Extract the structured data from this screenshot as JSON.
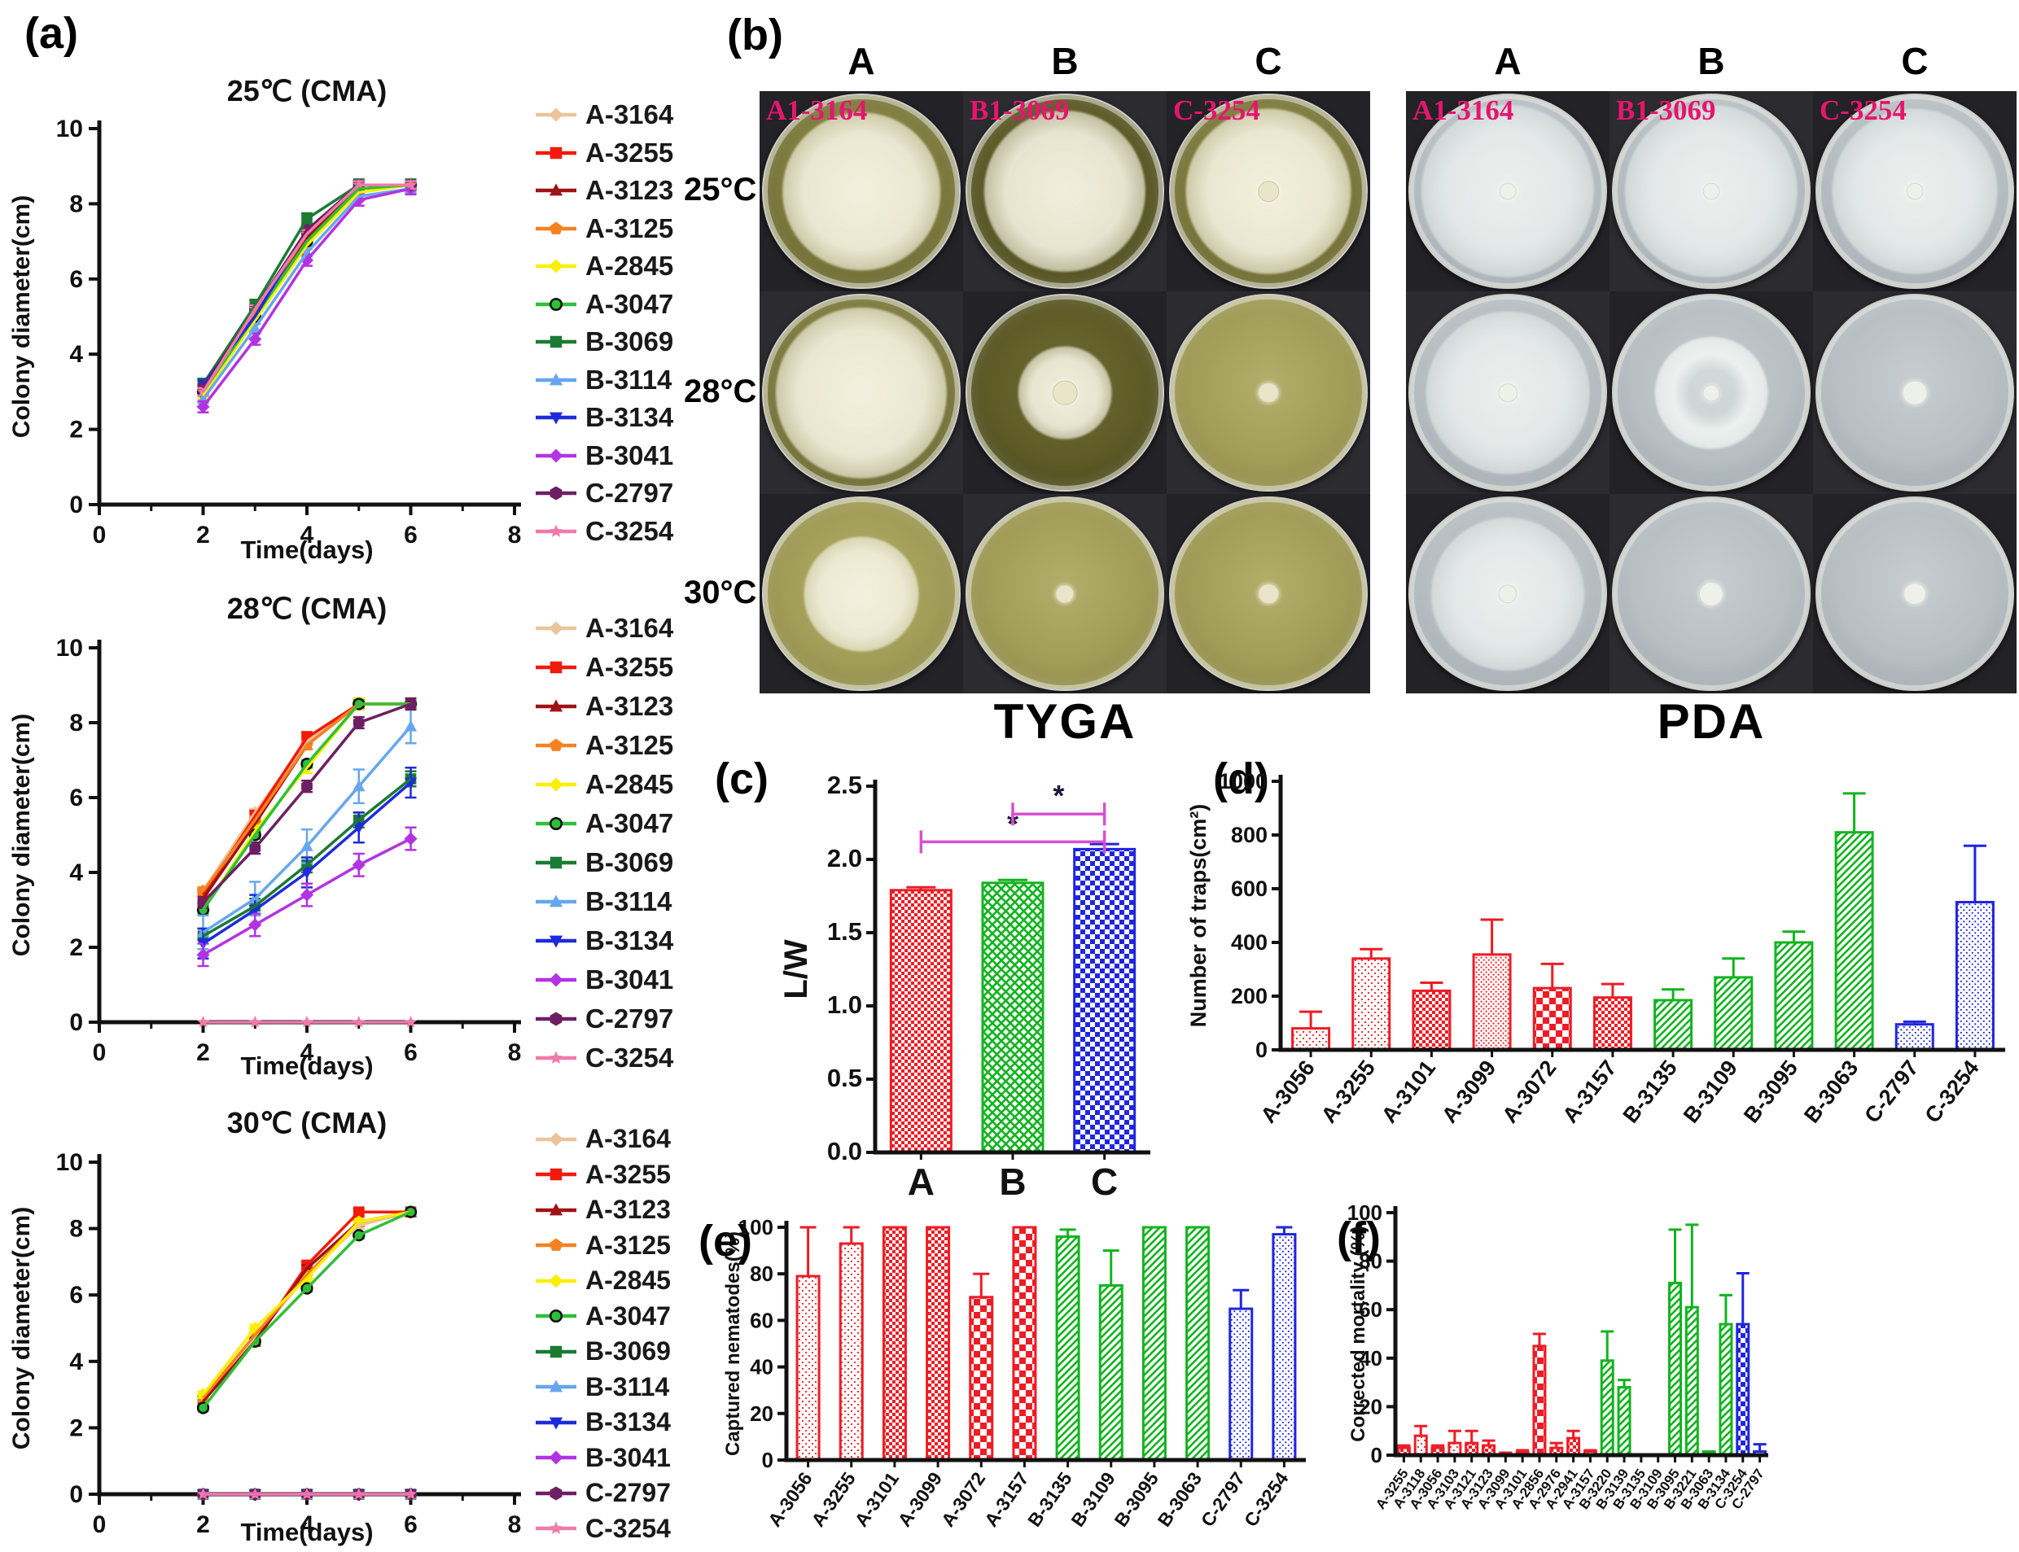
{
  "panels": {
    "a": {
      "label": "(a)",
      "xlabel": "Time(days)",
      "ylabel": "Colony diameter(cm)"
    },
    "b": {
      "label": "(b)",
      "row_labels": [
        "25°C",
        "28°C",
        "30°C"
      ],
      "strain_label_color": "#E6156E",
      "groups": [
        {
          "caption": "TYGA",
          "columns": [
            "A",
            "B",
            "C"
          ],
          "strains": [
            "A1-3164",
            "B1-3069",
            "C-3254"
          ],
          "rows": [
            [
              {
                "tone": "olive",
                "colony": 0.82,
                "plug": 0
              },
              {
                "tone": "oliveDark",
                "colony": 0.84,
                "plug": 0
              },
              {
                "tone": "olive",
                "colony": 0.86,
                "plug": 0.1
              }
            ],
            [
              {
                "tone": "olive",
                "colony": 0.88,
                "plug": 0
              },
              {
                "tone": "oliveDark",
                "colony": 0.48,
                "plug": 0.12
              },
              {
                "tone": "oliveLight",
                "colony": 0,
                "plug": 0.1
              }
            ],
            [
              {
                "tone": "oliveLight",
                "colony": 0.6,
                "plug": 0
              },
              {
                "tone": "oliveLight",
                "colony": 0,
                "plug": 0.09
              },
              {
                "tone": "oliveLight",
                "colony": 0,
                "plug": 0.1
              }
            ]
          ]
        },
        {
          "caption": "PDA",
          "columns": [
            "A",
            "B",
            "C"
          ],
          "strains": [
            "A1-3164",
            "B1-3069",
            "C-3254"
          ],
          "rows": [
            [
              {
                "tone": "gray",
                "colony": 0.9,
                "plug": 0.08
              },
              {
                "tone": "gray",
                "colony": 0.9,
                "plug": 0.08
              },
              {
                "tone": "gray",
                "colony": 0.86,
                "plug": 0.08
              }
            ],
            [
              {
                "tone": "gray",
                "colony": 0.84,
                "plug": 0.09
              },
              {
                "tone": "gray",
                "colony": 0.58,
                "ring": true,
                "plug": 0.08
              },
              {
                "tone": "gray",
                "colony": 0,
                "plug": 0.12
              }
            ],
            [
              {
                "tone": "gray",
                "colony": 0.8,
                "plug": 0.09
              },
              {
                "tone": "gray",
                "colony": 0,
                "plug": 0.12
              },
              {
                "tone": "gray",
                "colony": 0,
                "plug": 0.11
              }
            ]
          ]
        }
      ]
    },
    "c": {
      "label": "(c)"
    },
    "d": {
      "label": "(d)"
    },
    "e": {
      "label": "(e)"
    },
    "f": {
      "label": "(f)"
    }
  },
  "strains": [
    {
      "label": "A-3164",
      "color": "#EBC49B",
      "marker": "diamond"
    },
    {
      "label": "A-3255",
      "color": "#F2190D",
      "marker": "square"
    },
    {
      "label": "A-3123",
      "color": "#9E1215",
      "marker": "triangle-up"
    },
    {
      "label": "A-3125",
      "color": "#F5821F",
      "marker": "pentagon"
    },
    {
      "label": "A-2845",
      "color": "#FBEF00",
      "marker": "diamond"
    },
    {
      "label": "A-3047",
      "color": "#2FBF3A",
      "marker": "circle-open",
      "marker_color": "#111111"
    },
    {
      "label": "B-3069",
      "color": "#1B7B34",
      "marker": "square"
    },
    {
      "label": "B-3114",
      "color": "#66A7EE",
      "marker": "triangle-up"
    },
    {
      "label": "B-3134",
      "color": "#1E2BDC",
      "marker": "triangle-down"
    },
    {
      "label": "B-3041",
      "color": "#B233E3",
      "marker": "diamond"
    },
    {
      "label": "C-2797",
      "color": "#6E1F63",
      "marker": "hexagon"
    },
    {
      "label": "C-3254",
      "color": "#F07BA8",
      "marker": "star"
    }
  ],
  "chart_data": [
    {
      "id": "a25",
      "type": "line",
      "title": "25℃ (CMA)",
      "xlabel": "Time(days)",
      "ylabel": "Colony diameter(cm)",
      "xlim": [
        0,
        8
      ],
      "ylim": [
        0,
        10
      ],
      "xticks": [
        0,
        2,
        4,
        6,
        8
      ],
      "xminor": [
        1,
        3,
        5,
        7
      ],
      "yticks": [
        0,
        2,
        4,
        6,
        8,
        10
      ],
      "x": [
        2,
        3,
        4,
        5,
        6
      ],
      "legend_position": "right",
      "series": [
        {
          "name": "A-3164",
          "values": [
            3.0,
            5.0,
            7.0,
            8.4,
            8.5
          ],
          "err": 0.1
        },
        {
          "name": "A-3255",
          "values": [
            3.1,
            5.2,
            7.2,
            8.5,
            8.5
          ],
          "err": 0.1
        },
        {
          "name": "A-3123",
          "values": [
            3.0,
            5.1,
            7.1,
            8.4,
            8.5
          ],
          "err": 0.1
        },
        {
          "name": "A-3125",
          "values": [
            3.1,
            5.1,
            7.2,
            8.5,
            8.5
          ],
          "err": 0.1
        },
        {
          "name": "A-2845",
          "values": [
            2.9,
            4.9,
            6.9,
            8.3,
            8.5
          ],
          "err": 0.1
        },
        {
          "name": "A-3047",
          "values": [
            3.0,
            5.0,
            7.0,
            8.4,
            8.5
          ],
          "err": 0.1
        },
        {
          "name": "B-3069",
          "values": [
            3.2,
            5.3,
            7.6,
            8.5,
            8.5
          ],
          "err": 0.15
        },
        {
          "name": "B-3114",
          "values": [
            2.8,
            4.7,
            6.7,
            8.2,
            8.4
          ],
          "err": 0.1
        },
        {
          "name": "B-3134",
          "values": [
            3.2,
            5.0,
            7.3,
            8.5,
            8.5
          ],
          "err": 0.1
        },
        {
          "name": "B-3041",
          "values": [
            2.6,
            4.4,
            6.5,
            8.1,
            8.4
          ],
          "err": 0.15
        },
        {
          "name": "C-2797",
          "values": [
            3.1,
            5.2,
            7.3,
            8.5,
            8.5
          ],
          "err": 0.1
        },
        {
          "name": "C-3254",
          "values": [
            3.0,
            5.2,
            7.2,
            8.5,
            8.5
          ],
          "err": 0.1
        }
      ]
    },
    {
      "id": "a28",
      "type": "line",
      "title": "28℃ (CMA)",
      "xlabel": "Time(days)",
      "ylabel": "Colony diameter(cm)",
      "xlim": [
        0,
        8
      ],
      "ylim": [
        0,
        10
      ],
      "xticks": [
        0,
        2,
        4,
        6,
        8
      ],
      "xminor": [
        1,
        3,
        5,
        7
      ],
      "yticks": [
        0,
        2,
        4,
        6,
        8,
        10
      ],
      "x": [
        2,
        3,
        4,
        5,
        6
      ],
      "legend_position": "right",
      "series": [
        {
          "name": "A-3164",
          "values": [
            3.5,
            5.6,
            7.5,
            8.5,
            8.5
          ],
          "err": 0.1
        },
        {
          "name": "A-3255",
          "values": [
            3.4,
            5.5,
            7.6,
            8.5,
            8.5
          ],
          "err": 0.15
        },
        {
          "name": "A-3123",
          "values": [
            3.3,
            5.3,
            7.4,
            8.5,
            8.5
          ],
          "err": 0.1
        },
        {
          "name": "A-3125",
          "values": [
            3.5,
            5.4,
            7.4,
            8.5,
            8.5
          ],
          "err": 0.1
        },
        {
          "name": "A-2845",
          "values": [
            3.0,
            5.1,
            6.8,
            8.5,
            8.5
          ],
          "err": 0.15
        },
        {
          "name": "A-3047",
          "values": [
            3.0,
            5.0,
            6.9,
            8.5,
            8.5
          ],
          "err": 0.1
        },
        {
          "name": "B-3069",
          "values": [
            2.3,
            3.1,
            4.2,
            5.4,
            6.5
          ],
          "err": 0.2
        },
        {
          "name": "B-3114",
          "values": [
            2.4,
            3.3,
            4.7,
            6.3,
            7.9
          ],
          "err": 0.45
        },
        {
          "name": "B-3134",
          "values": [
            2.1,
            3.0,
            4.0,
            5.2,
            6.4
          ],
          "err": 0.4
        },
        {
          "name": "B-3041",
          "values": [
            1.8,
            2.6,
            3.4,
            4.2,
            4.9
          ],
          "err": 0.3
        },
        {
          "name": "C-2797",
          "values": [
            3.2,
            4.65,
            6.3,
            8.0,
            8.5
          ],
          "err": 0.15
        },
        {
          "name": "C-3254",
          "values": [
            0,
            0,
            0,
            0,
            0
          ],
          "err": 0
        }
      ]
    },
    {
      "id": "a30",
      "type": "line",
      "title": "30℃ (CMA)",
      "xlabel": "Time(days)",
      "ylabel": "Colony diameter(cm)",
      "xlim": [
        0,
        8
      ],
      "ylim": [
        0,
        10
      ],
      "xticks": [
        0,
        2,
        4,
        6,
        8
      ],
      "xminor": [
        1,
        3,
        5,
        7
      ],
      "yticks": [
        0,
        2,
        4,
        6,
        8,
        10
      ],
      "x": [
        2,
        3,
        4,
        5,
        6
      ],
      "legend_position": "right",
      "series": [
        {
          "name": "A-3164",
          "values": [
            2.8,
            4.7,
            6.6,
            8.1,
            8.5
          ],
          "err": 0.1
        },
        {
          "name": "A-3255",
          "values": [
            2.8,
            4.6,
            6.9,
            8.5,
            8.5
          ],
          "err": 0.1
        },
        {
          "name": "A-3123",
          "values": [
            2.8,
            4.6,
            6.8,
            8.2,
            8.5
          ],
          "err": 0.1
        },
        {
          "name": "A-3125",
          "values": [
            2.9,
            4.8,
            6.6,
            8.2,
            8.5
          ],
          "err": 0.1
        },
        {
          "name": "A-2845",
          "values": [
            3.0,
            5.0,
            6.5,
            8.2,
            8.5
          ],
          "err": 0.1
        },
        {
          "name": "A-3047",
          "values": [
            2.6,
            4.6,
            6.2,
            7.8,
            8.5
          ],
          "err": 0.1
        },
        {
          "name": "B-3069",
          "values": [
            0,
            0,
            0,
            0,
            0
          ],
          "err": 0
        },
        {
          "name": "B-3114",
          "values": [
            0,
            0,
            0,
            0,
            0
          ],
          "err": 0
        },
        {
          "name": "B-3134",
          "values": [
            0,
            0,
            0,
            0,
            0
          ],
          "err": 0
        },
        {
          "name": "B-3041",
          "values": [
            0,
            0,
            0,
            0,
            0
          ],
          "err": 0
        },
        {
          "name": "C-2797",
          "values": [
            0,
            0,
            0,
            0,
            0
          ],
          "err": 0
        },
        {
          "name": "C-3254",
          "values": [
            0,
            0,
            0,
            0,
            0
          ],
          "err": 0
        }
      ]
    },
    {
      "id": "c",
      "type": "bar",
      "ylabel": "L/W",
      "categories": [
        "A",
        "B",
        "C"
      ],
      "values": [
        1.79,
        1.84,
        2.07
      ],
      "errors": [
        0.02,
        0.02,
        0.035
      ],
      "ylim": [
        0,
        2.5
      ],
      "yticks": [
        0,
        0.5,
        1,
        1.5,
        2,
        2.5
      ],
      "ydec": 1,
      "fills": [
        "pRchk",
        "pGx",
        "pBchk"
      ],
      "strokes": [
        "#EE1C25",
        "#12B41F",
        "#2026DF"
      ],
      "significance": [
        {
          "i1": 0,
          "i2": 2,
          "y": 2.12,
          "label": "*"
        },
        {
          "i1": 1,
          "i2": 2,
          "y": 2.31,
          "label": "*"
        }
      ],
      "sig_color": "#D94FD0"
    },
    {
      "id": "d",
      "type": "bar",
      "ylabel": "Number of traps(cm²)",
      "categories": [
        "A-3056",
        "A-3255",
        "A-3101",
        "A-3099",
        "A-3072",
        "A-3157",
        "B-3135",
        "B-3109",
        "B-3095",
        "B-3063",
        "C-2797",
        "C-3254"
      ],
      "values": [
        80,
        340,
        220,
        355,
        230,
        195,
        185,
        270,
        400,
        810,
        95,
        550
      ],
      "errors": [
        62,
        35,
        30,
        130,
        90,
        50,
        40,
        70,
        40,
        145,
        10,
        210
      ],
      "ylim": [
        0,
        1000
      ],
      "yticks": [
        0,
        200,
        400,
        600,
        800,
        1000
      ],
      "fills": [
        "pRdot",
        "pRdot",
        "pRchk",
        "pRdot2",
        "pRchkB",
        "pRchk",
        "pGhatch",
        "pGhatch",
        "pGhatch",
        "pGhatch",
        "pBdot",
        "pBdot"
      ],
      "strokes": [
        "#EE1C25",
        "#EE1C25",
        "#EE1C25",
        "#EE1C25",
        "#EE1C25",
        "#EE1C25",
        "#12B41F",
        "#12B41F",
        "#12B41F",
        "#12B41F",
        "#2026DF",
        "#2026DF"
      ]
    },
    {
      "id": "e",
      "type": "bar",
      "ylabel": "Captured nematodes(%)",
      "categories": [
        "A-3056",
        "A-3255",
        "A-3101",
        "A-3099",
        "A-3072",
        "A-3157",
        "B-3135",
        "B-3109",
        "B-3095",
        "B-3063",
        "C-2797",
        "C-3254"
      ],
      "values": [
        79,
        93,
        100,
        100,
        70,
        100,
        96,
        75,
        100,
        100,
        65,
        97
      ],
      "errors": [
        21,
        7,
        0,
        0,
        10,
        0,
        3,
        15,
        0,
        0,
        8,
        3
      ],
      "ylim": [
        0,
        100
      ],
      "yticks": [
        0,
        20,
        40,
        60,
        80,
        100
      ],
      "fills": [
        "pRdot",
        "pRdot",
        "pRchk",
        "pRchk",
        "pRchkB",
        "pRchkB",
        "pGhatch",
        "pGhatch",
        "pGhatch",
        "pGhatch",
        "pBdot",
        "pBdot"
      ],
      "strokes": [
        "#EE1C25",
        "#EE1C25",
        "#EE1C25",
        "#EE1C25",
        "#EE1C25",
        "#EE1C25",
        "#12B41F",
        "#12B41F",
        "#12B41F",
        "#12B41F",
        "#2026DF",
        "#2026DF"
      ]
    },
    {
      "id": "f",
      "type": "bar",
      "ylabel": "Corrected mortality (%)",
      "categories": [
        "A-3255",
        "A-3118",
        "A-3056",
        "A-3103",
        "A-3121",
        "A-3123",
        "A-3099",
        "A-3101",
        "A-2856",
        "A-2976",
        "A-2941",
        "A-3157",
        "B-3220",
        "B-3139",
        "B-3135",
        "B-3109",
        "B-3095",
        "B-3221",
        "B-3063",
        "B-3134",
        "C-3254",
        "C-2797"
      ],
      "values": [
        3,
        8,
        3,
        5,
        5,
        4,
        0.5,
        1,
        45,
        3,
        7,
        1.5,
        39,
        28,
        0,
        0,
        71,
        61,
        1.5,
        54,
        54,
        1.5
      ],
      "errors": [
        1,
        4,
        1,
        5,
        5,
        2,
        0.5,
        1,
        5,
        2,
        3,
        0.5,
        12,
        3,
        0,
        0,
        22,
        34,
        0,
        12,
        21,
        3
      ],
      "ylim": [
        0,
        100
      ],
      "yticks": [
        0,
        20,
        40,
        60,
        80,
        100
      ],
      "fills": [
        "pRchk",
        "pRdot",
        "pRchk",
        "pRdot",
        "pRchk",
        "pRchk",
        "pRdot",
        "pRdot",
        "pRchkB",
        "pRchk",
        "pRchk",
        "pRdot",
        "pGhatch",
        "pGhatch",
        "pGhatch",
        "pGhatch",
        "pGhatch",
        "pGhatch",
        "solidG",
        "pGhatch",
        "pBchk",
        "pBdot"
      ],
      "strokes": [
        "#EE1C25",
        "#EE1C25",
        "#EE1C25",
        "#EE1C25",
        "#EE1C25",
        "#EE1C25",
        "#EE1C25",
        "#EE1C25",
        "#EE1C25",
        "#EE1C25",
        "#EE1C25",
        "#EE1C25",
        "#12B41F",
        "#12B41F",
        "#12B41F",
        "#12B41F",
        "#12B41F",
        "#12B41F",
        "#12B41F",
        "#12B41F",
        "#2026DF",
        "#2026DF"
      ]
    }
  ]
}
